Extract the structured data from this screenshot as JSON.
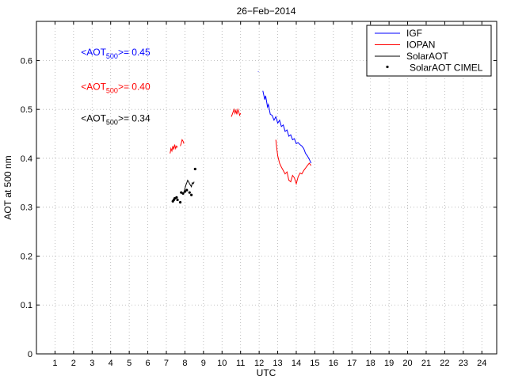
{
  "chart_data": {
    "type": "line",
    "title": "26−Feb−2014",
    "xlabel": "UTC",
    "ylabel": "AOT at 500 nm",
    "xlim": [
      0,
      24.8
    ],
    "ylim": [
      0,
      0.68
    ],
    "xticks": [
      1,
      2,
      3,
      4,
      5,
      6,
      7,
      8,
      9,
      10,
      11,
      12,
      13,
      14,
      15,
      16,
      17,
      18,
      19,
      20,
      21,
      22,
      23,
      24
    ],
    "yticks": [
      0,
      0.1,
      0.2,
      0.3,
      0.4,
      0.5,
      0.6
    ],
    "ytick_labels": [
      "0",
      "0.1",
      "0.2",
      "0.3",
      "0.4",
      "0.5",
      "0.6"
    ],
    "grid": true,
    "legend_position": "top-right",
    "annotations": [
      {
        "prefix": "<AOT",
        "sub": "500",
        "suffix": ">= 0.45",
        "color": "#0000ff",
        "x": 2.4,
        "y": 0.61
      },
      {
        "prefix": "<AOT",
        "sub": "500",
        "suffix": ">= 0.40",
        "color": "#ff0000",
        "x": 2.4,
        "y": 0.54
      },
      {
        "prefix": "<AOT",
        "sub": "500",
        "suffix": ">= 0.34",
        "color": "#000000",
        "x": 2.4,
        "y": 0.475
      }
    ],
    "series": [
      {
        "name": "IGF",
        "color": "#0000ff",
        "style": "line",
        "segments": [
          [
            [
              11.95,
              0.578
            ],
            [
              11.96,
              0.577
            ]
          ],
          [
            [
              12.2,
              0.538
            ],
            [
              12.3,
              0.52
            ],
            [
              12.35,
              0.528
            ],
            [
              12.45,
              0.505
            ],
            [
              12.5,
              0.51
            ],
            [
              12.6,
              0.49
            ],
            [
              12.7,
              0.488
            ],
            [
              12.8,
              0.478
            ],
            [
              12.9,
              0.485
            ],
            [
              13.0,
              0.472
            ],
            [
              13.1,
              0.478
            ],
            [
              13.2,
              0.465
            ],
            [
              13.3,
              0.468
            ],
            [
              13.4,
              0.455
            ],
            [
              13.5,
              0.458
            ],
            [
              13.6,
              0.445
            ],
            [
              13.7,
              0.448
            ],
            [
              13.8,
              0.438
            ],
            [
              13.9,
              0.44
            ],
            [
              14.0,
              0.43
            ],
            [
              14.1,
              0.432
            ],
            [
              14.2,
              0.428
            ],
            [
              14.3,
              0.425
            ],
            [
              14.4,
              0.42
            ],
            [
              14.5,
              0.41
            ],
            [
              14.6,
              0.405
            ],
            [
              14.7,
              0.398
            ],
            [
              14.8,
              0.39
            ]
          ]
        ]
      },
      {
        "name": "IOPAN",
        "color": "#ff0000",
        "style": "line",
        "segments": [
          [
            [
              7.2,
              0.41
            ],
            [
              7.25,
              0.42
            ],
            [
              7.3,
              0.415
            ],
            [
              7.35,
              0.425
            ],
            [
              7.4,
              0.418
            ],
            [
              7.45,
              0.428
            ],
            [
              7.5,
              0.42
            ],
            [
              7.55,
              0.425
            ],
            [
              7.6,
              0.422
            ]
          ],
          [
            [
              7.75,
              0.425
            ],
            [
              7.8,
              0.43
            ],
            [
              7.85,
              0.438
            ],
            [
              7.9,
              0.435
            ],
            [
              7.95,
              0.43
            ]
          ],
          [
            [
              10.5,
              0.485
            ],
            [
              10.55,
              0.49
            ],
            [
              10.6,
              0.495
            ],
            [
              10.65,
              0.5
            ],
            [
              10.7,
              0.492
            ],
            [
              10.75,
              0.498
            ],
            [
              10.8,
              0.49
            ],
            [
              10.85,
              0.5
            ],
            [
              10.9,
              0.495
            ],
            [
              10.95,
              0.488
            ],
            [
              11.0,
              0.492
            ]
          ],
          [
            [
              12.9,
              0.438
            ],
            [
              12.95,
              0.42
            ],
            [
              13.0,
              0.405
            ],
            [
              13.1,
              0.39
            ],
            [
              13.2,
              0.382
            ],
            [
              13.3,
              0.375
            ],
            [
              13.4,
              0.368
            ],
            [
              13.5,
              0.372
            ],
            [
              13.6,
              0.355
            ],
            [
              13.7,
              0.352
            ],
            [
              13.8,
              0.365
            ],
            [
              13.9,
              0.36
            ],
            [
              14.0,
              0.348
            ],
            [
              14.1,
              0.362
            ],
            [
              14.2,
              0.37
            ],
            [
              14.3,
              0.368
            ],
            [
              14.4,
              0.375
            ],
            [
              14.5,
              0.38
            ],
            [
              14.6,
              0.385
            ],
            [
              14.7,
              0.39
            ],
            [
              14.8,
              0.385
            ]
          ]
        ]
      },
      {
        "name": "SolarAOT",
        "color": "#000000",
        "style": "line",
        "segments": [
          [
            [
              7.95,
              0.33
            ],
            [
              8.0,
              0.338
            ],
            [
              8.05,
              0.345
            ],
            [
              8.1,
              0.35
            ],
            [
              8.15,
              0.355
            ],
            [
              8.2,
              0.352
            ],
            [
              8.25,
              0.348
            ],
            [
              8.3,
              0.345
            ],
            [
              8.35,
              0.342
            ],
            [
              8.4,
              0.35
            ],
            [
              8.45,
              0.348
            ],
            [
              8.5,
              0.352
            ]
          ]
        ]
      },
      {
        "name": "SolarAOT CIMEL",
        "color": "#000000",
        "style": "points",
        "points": [
          [
            7.35,
            0.312
          ],
          [
            7.4,
            0.315
          ],
          [
            7.45,
            0.318
          ],
          [
            7.55,
            0.32
          ],
          [
            7.6,
            0.315
          ],
          [
            7.75,
            0.31
          ],
          [
            7.8,
            0.33
          ],
          [
            7.9,
            0.328
          ],
          [
            8.0,
            0.332
          ],
          [
            8.1,
            0.335
          ],
          [
            8.25,
            0.33
          ],
          [
            8.35,
            0.325
          ],
          [
            8.55,
            0.378
          ]
        ]
      }
    ]
  }
}
